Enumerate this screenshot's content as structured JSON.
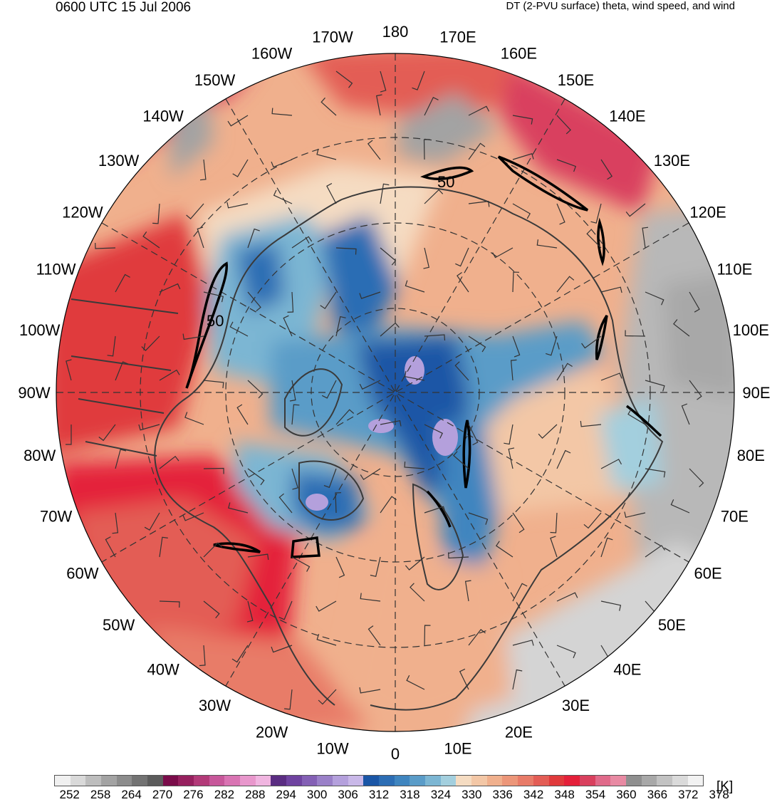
{
  "header": {
    "valid_time": "0600 UTC 15 Jul 2006",
    "product": "DT (2-PVU surface) theta, wind speed, and wind"
  },
  "map": {
    "projection": "north-polar-stereographic",
    "longitude_labels": [
      "180",
      "170E",
      "160E",
      "150E",
      "140E",
      "130E",
      "120E",
      "110E",
      "100E",
      "90E",
      "80E",
      "70E",
      "60E",
      "50E",
      "40E",
      "30E",
      "20E",
      "10E",
      "0",
      "10W",
      "20W",
      "30W",
      "40W",
      "50W",
      "60W",
      "70W",
      "80W",
      "90W",
      "100W",
      "110W",
      "120W",
      "130W",
      "140W",
      "150W",
      "160W",
      "170W"
    ],
    "wind_speed_contour_labels": [
      "50",
      "50"
    ]
  },
  "colorbar": {
    "unit": "[K]",
    "tick_labels": [
      "252",
      "258",
      "264",
      "270",
      "276",
      "282",
      "288",
      "294",
      "300",
      "306",
      "312",
      "318",
      "324",
      "330",
      "336",
      "342",
      "348",
      "354",
      "360",
      "366",
      "372",
      "378"
    ],
    "colors": [
      "#f0f0f0",
      "#d9d9d9",
      "#bdbdbd",
      "#a3a3a3",
      "#8c8c8c",
      "#737373",
      "#5c5c5c",
      "#7a0c4a",
      "#96205e",
      "#b23a78",
      "#c7579a",
      "#d974b3",
      "#e897cc",
      "#f0b5e0",
      "#5a2d82",
      "#6f43a0",
      "#8460b5",
      "#9a80c8",
      "#b4a0dc",
      "#c9b8e8",
      "#1a56a6",
      "#2c6db4",
      "#3f85bf",
      "#5a9cc8",
      "#7cb6d3",
      "#a3cfde",
      "#f5dcc2",
      "#f3c7a6",
      "#f0b08d",
      "#ec9679",
      "#e87b68",
      "#e35d55",
      "#e03a3c",
      "#e4203a",
      "#d9405e",
      "#e06a8a",
      "#e88aa3",
      "#8f8f8f",
      "#a8a8a8",
      "#c2c2c2",
      "#dadada",
      "#f2f2f2"
    ]
  }
}
